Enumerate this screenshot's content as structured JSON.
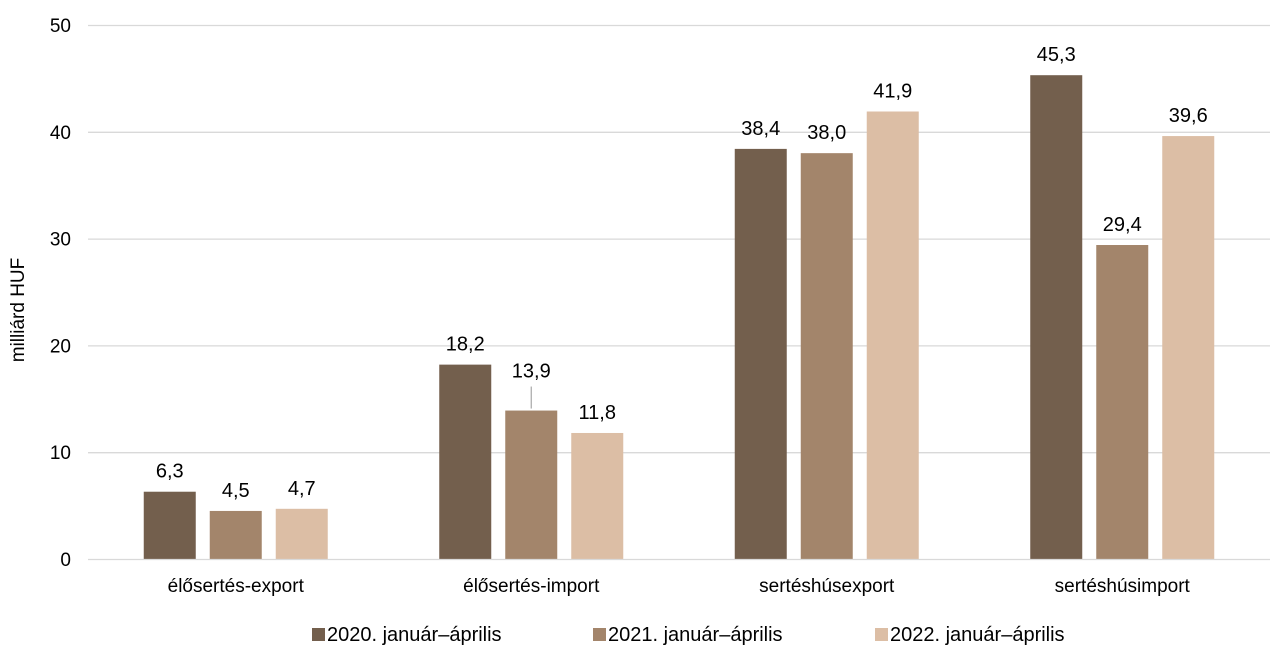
{
  "chart_data": {
    "type": "bar",
    "ylabel": "milliárd HUF",
    "ylim": [
      0,
      50
    ],
    "yticks": [
      "0",
      "10",
      "20",
      "30",
      "40",
      "50"
    ],
    "categories": [
      "élősertés-export",
      "élősertés-import",
      "sertéshúsexport",
      "sertéshúsimport"
    ],
    "series": [
      {
        "name": "2020. január–április",
        "color": "#735f4d",
        "values": [
          6.3,
          18.2,
          38.4,
          45.3
        ],
        "labels": [
          "6,3",
          "18,2",
          "38,4",
          "45,3"
        ]
      },
      {
        "name": "2021.  január–április",
        "color": "#a3856b",
        "values": [
          4.5,
          13.9,
          38.0,
          29.4
        ],
        "labels": [
          "4,5",
          "13,9",
          "38,0",
          "29,4"
        ]
      },
      {
        "name": "2022.  január–április",
        "color": "#dcbea5",
        "values": [
          4.7,
          11.8,
          41.9,
          39.6
        ],
        "labels": [
          "4,7",
          "11,8",
          "41,9",
          "39,6"
        ]
      }
    ],
    "grid": true,
    "legend_position": "bottom"
  }
}
